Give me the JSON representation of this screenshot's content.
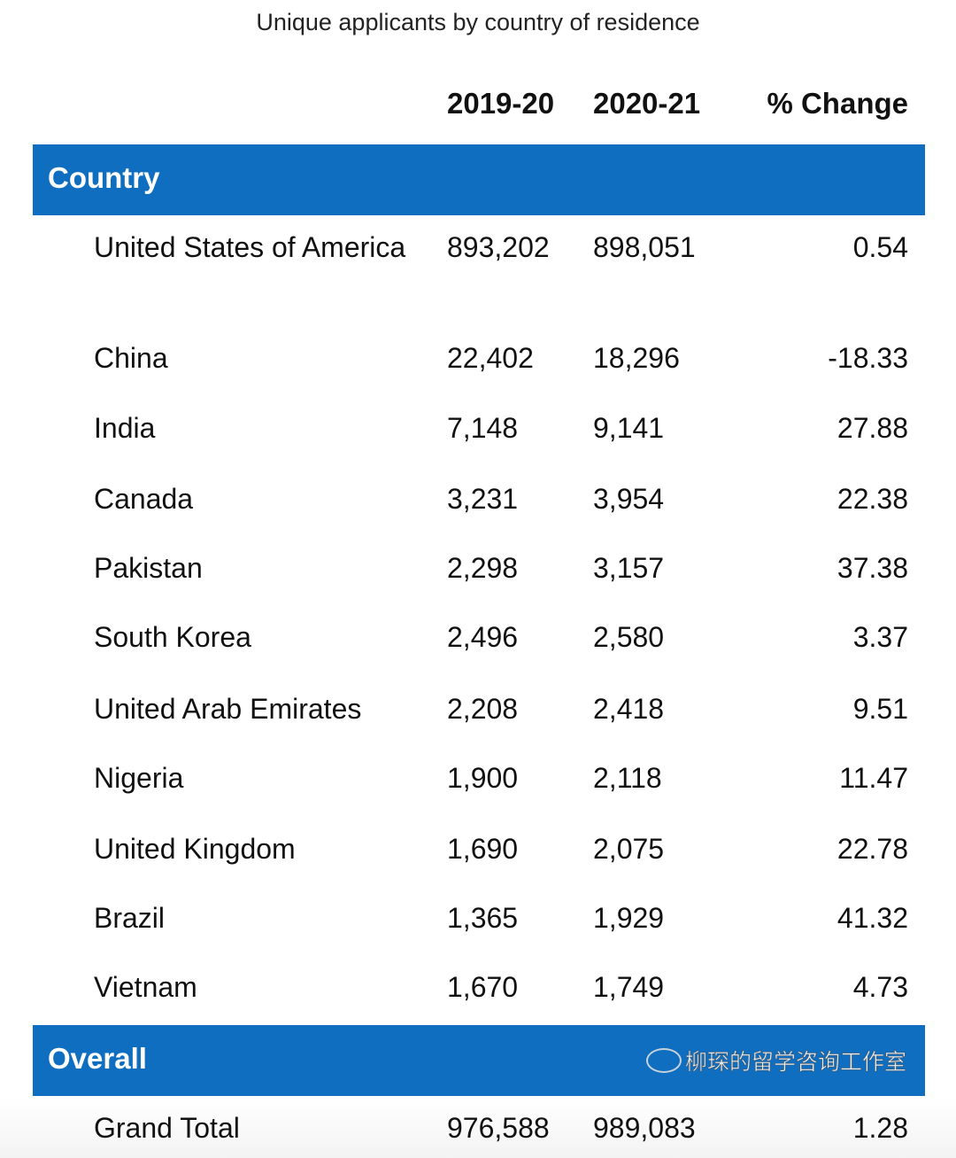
{
  "title": "Unique applicants by country of residence",
  "columns": [
    "2019-20",
    "2020-21",
    "% Change"
  ],
  "section_country": "Country",
  "rows": [
    {
      "name": "United States of America",
      "y1": "893,202",
      "y2": "898,051",
      "pct": "0.54"
    },
    {
      "name": "China",
      "y1": "22,402",
      "y2": "18,296",
      "pct": "-18.33"
    },
    {
      "name": "India",
      "y1": "7,148",
      "y2": "9,141",
      "pct": "27.88"
    },
    {
      "name": "Canada",
      "y1": "3,231",
      "y2": "3,954",
      "pct": "22.38"
    },
    {
      "name": "Pakistan",
      "y1": "2,298",
      "y2": "3,157",
      "pct": "37.38"
    },
    {
      "name": "South Korea",
      "y1": "2,496",
      "y2": "2,580",
      "pct": "3.37"
    },
    {
      "name": "United Arab Emirates",
      "y1": "2,208",
      "y2": "2,418",
      "pct": "9.51"
    },
    {
      "name": "Nigeria",
      "y1": "1,900",
      "y2": "2,118",
      "pct": "11.47"
    },
    {
      "name": "United Kingdom",
      "y1": "1,690",
      "y2": "2,075",
      "pct": "22.78"
    },
    {
      "name": "Brazil",
      "y1": "1,365",
      "y2": "1,929",
      "pct": "41.32"
    },
    {
      "name": "Vietnam",
      "y1": "1,670",
      "y2": "1,749",
      "pct": "4.73"
    }
  ],
  "section_overall": "Overall",
  "total": {
    "name": "Grand Total",
    "y1": "976,588",
    "y2": "989,083",
    "pct": "1.28"
  },
  "watermark": "柳琛的留学咨询工作室"
}
